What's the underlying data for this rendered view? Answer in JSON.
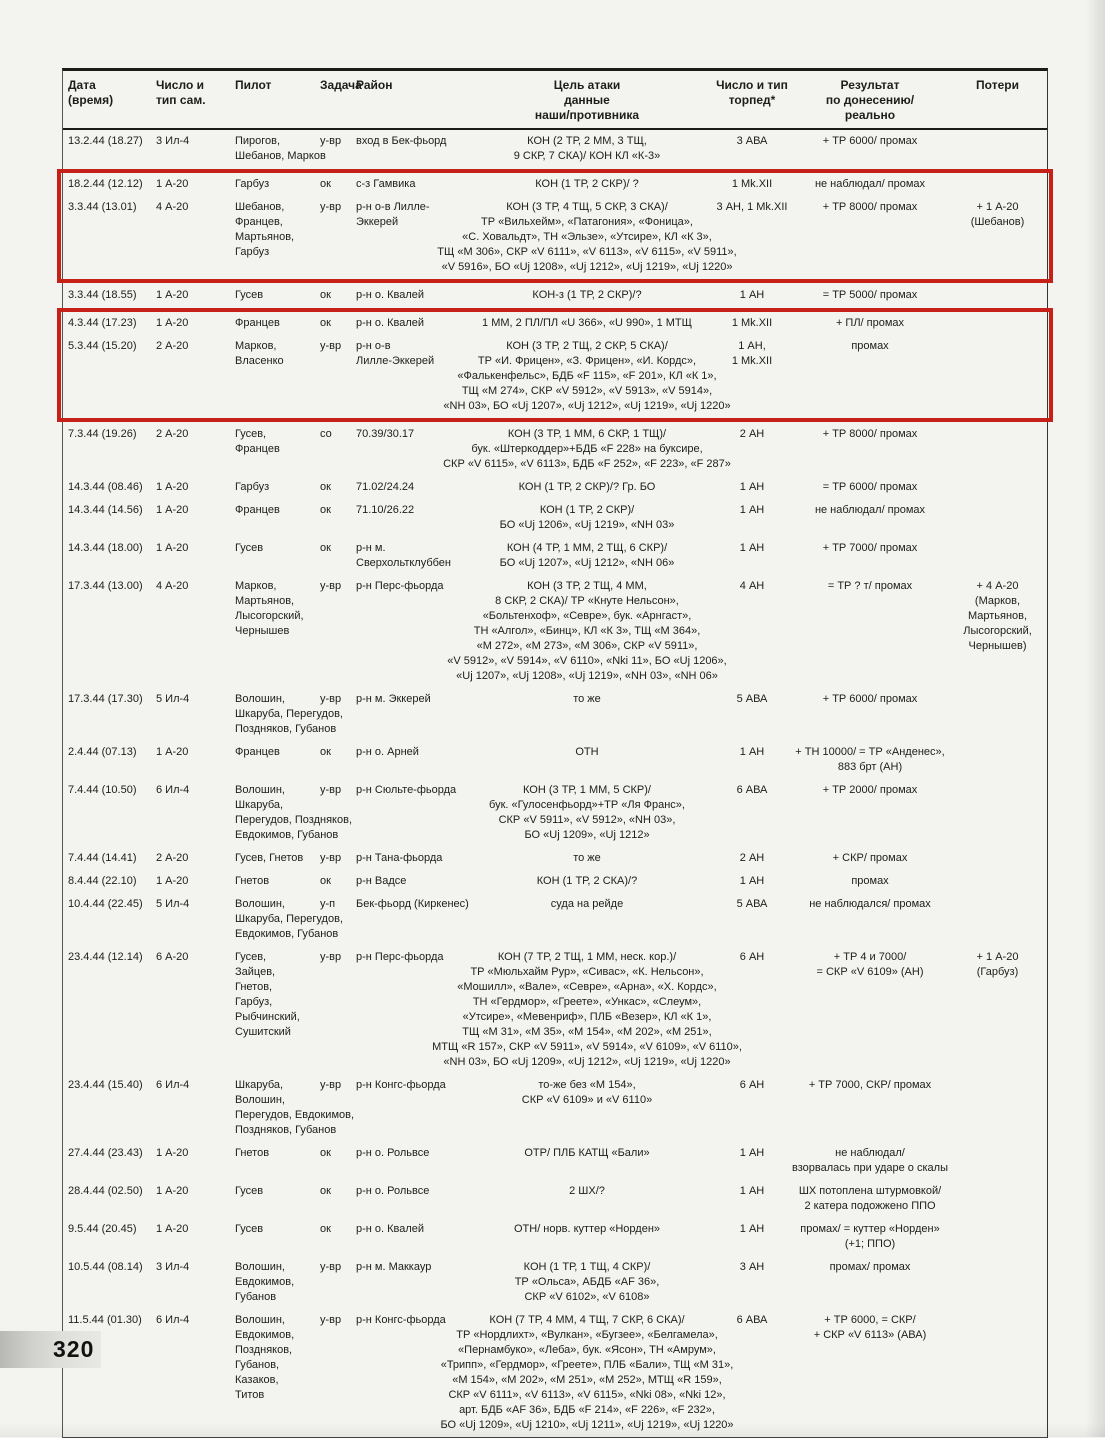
{
  "page": {
    "number": "320"
  },
  "colors": {
    "highlight_red": "#c62118",
    "ink": "#1d1d1b",
    "paper": "#f3f3f0"
  },
  "table": {
    "columns": [
      {
        "key": "date",
        "label": "Дата\n(время)",
        "align": "left"
      },
      {
        "key": "count",
        "label": "Число и\nтип сам.",
        "align": "left"
      },
      {
        "key": "pilots",
        "label": "Пилот",
        "align": "left"
      },
      {
        "key": "task",
        "label": "Задача",
        "align": "left"
      },
      {
        "key": "district",
        "label": "Район",
        "align": "left"
      },
      {
        "key": "target",
        "label": "Цель атаки\nданные\nнаши/противника",
        "align": "center"
      },
      {
        "key": "torpedoes",
        "label": "Число и тип\nторпед*",
        "align": "center"
      },
      {
        "key": "result",
        "label": "Результат\nпо донесению/\nреально",
        "align": "center"
      },
      {
        "key": "losses",
        "label": "Потери",
        "align": "center"
      }
    ],
    "rows": [
      {
        "date": "13.2.44 (18.27)",
        "count": "3 Ил-4",
        "pilots": "Пирогов,\nШебанов, Марков",
        "task": "у-вр",
        "district": "вход в Бек-фьорд",
        "target": "КОН (2 ТР, 2 ММ, 3 ТЩ,\n9 СКР, 7 СКА)/ КОН КЛ «К-3»",
        "torpedoes": "3 АВА",
        "result": "+ ТР 6000/ промах",
        "losses": ""
      },
      {
        "date": "18.2.44 (12.12)",
        "count": "1 А-20",
        "pilots": "Гарбуз",
        "task": "ок",
        "district": "с-з Гамвика",
        "target": "КОН (1 ТР, 2 СКР)/ ?",
        "torpedoes": "1 Mk.XII",
        "result": "не наблюдал/ промах",
        "losses": ""
      },
      {
        "date": "3.3.44 (13.01)",
        "count": "4 А-20",
        "pilots": "Шебанов,\nФранцев,\nМартьянов,\nГарбуз",
        "task": "у-вр",
        "district": "р-н о-в Лилле-\nЭккерей",
        "target": "КОН (3 ТР, 4 ТЩ, 5 СКР, 3 СКА)/\nТР «Вильхейм», «Патагония», «Фоница»,\n«С. Ховальдт», ТН «Эльзе», «Утсире», КЛ «К 3»,\nТЩ «М 306», СКР «V 6111», «V 6113», «V 6115», «V 5911»,\n«V 5916», БО «Uj 1208», «Uj 1212», «Uj 1219», «Uj 1220»",
        "torpedoes": "3 АН, 1 Mk.XII",
        "result": "+ ТР 8000/ промах",
        "losses": "+ 1 А-20\n(Шебанов)"
      },
      {
        "date": "3.3.44 (18.55)",
        "count": "1 А-20",
        "pilots": "Гусев",
        "task": "ок",
        "district": "р-н о. Квалей",
        "target": "КОН-з (1 ТР, 2 СКР)/?",
        "torpedoes": "1 АН",
        "result": "= ТР 5000/ промах",
        "losses": ""
      },
      {
        "date": "4.3.44 (17.23)",
        "count": "1 А-20",
        "pilots": "Францев",
        "task": "ок",
        "district": "р-н о. Квалей",
        "target": "1 ММ, 2 ПЛ/ПЛ «U 366», «U 990», 1 МТЩ",
        "torpedoes": "1 Mk.XII",
        "result": "+ ПЛ/ промах",
        "losses": ""
      },
      {
        "date": "5.3.44 (15.20)",
        "count": "2 А-20",
        "pilots": "Марков,\nВласенко",
        "task": "у-вр",
        "district": "р-н о-в\nЛилле-Эккерей",
        "target": "КОН (3 ТР, 2 ТЩ, 2 СКР, 5 СКА)/\nТР «И. Фрицен», «З. Фрицен», «И. Кордс»,\n«Фалькенфельс», БДБ «F 115», «F 201», КЛ «К 1»,\nТЩ «М 274», СКР «V 5912», «V 5913», «V 5914»,\n«NH 03», БО «Uj 1207», «Uj 1212», «Uj 1219», «Uj 1220»",
        "torpedoes": "1 АН,\n1 Mk.XII",
        "result": "промах",
        "losses": ""
      },
      {
        "date": "7.3.44 (19.26)",
        "count": "2 А-20",
        "pilots": "Гусев,\nФранцев",
        "task": "со",
        "district": "70.39/30.17",
        "target": "КОН (3 ТР, 1 ММ, 6 СКР, 1 ТЩ)/\nбук. «Штеркоддер»+БДБ «F 228» на буксире,\nСКР «V 6115», «V 6113», БДБ «F 252», «F 223», «F 287»",
        "torpedoes": "2 АН",
        "result": "+ ТР 8000/ промах",
        "losses": ""
      },
      {
        "date": "14.3.44 (08.46)",
        "count": "1 А-20",
        "pilots": "Гарбуз",
        "task": "ок",
        "district": "71.02/24.24",
        "target": "КОН (1 ТР, 2 СКР)/? Гр. БО",
        "torpedoes": "1 АН",
        "result": "= ТР 6000/ промах",
        "losses": ""
      },
      {
        "date": "14.3.44 (14.56)",
        "count": "1 А-20",
        "pilots": "Францев",
        "task": "ок",
        "district": "71.10/26.22",
        "target": "КОН (1 ТР, 2 СКР)/\nБО «Uj 1206», «Uj 1219», «NH 03»",
        "torpedoes": "1 АН",
        "result": "не наблюдал/ промах",
        "losses": ""
      },
      {
        "date": "14.3.44 (18.00)",
        "count": "1 А-20",
        "pilots": "Гусев",
        "task": "ок",
        "district": "р-н м.\nСверхольтклуббен",
        "target": "КОН (4 ТР, 1 ММ, 2 ТЩ, 6 СКР)/\nБО «Uj 1207», «Uj 1212», «NH 06»",
        "torpedoes": "1 АН",
        "result": "+ ТР 7000/ промах",
        "losses": ""
      },
      {
        "date": "17.3.44 (13.00)",
        "count": "4 А-20",
        "pilots": "Марков,\nМартьянов,\nЛысогорский,\nЧернышев",
        "task": "у-вр",
        "district": "р-н Перс-фьорда",
        "target": "КОН (3 ТР, 2 ТЩ, 4 ММ,\n8 СКР, 2 СКА)/ ТР «Кнуте Нельсон»,\n«Больтенхоф», «Севре», бук. «Арнгаст»,\nТН «Алгол», «Бинц», КЛ «К 3», ТЩ «М 364»,\n«М 272», «М 273», «М 306», СКР «V 5911»,\n«V 5912», «V 5914», «V 6110», «Nki 11», БО «Uj 1206»,\n«Uj 1207», «Uj 1208», «Uj 1219», «NH 03», «NH 06»",
        "torpedoes": "4 АН",
        "result": "= ТР ? т/ промах",
        "losses": "+ 4 А-20\n(Марков,\nМартьянов,\nЛысогорский,\nЧернышев)"
      },
      {
        "date": "17.3.44 (17.30)",
        "count": "5 Ил-4",
        "pilots": "Волошин,\nШкаруба, Перегудов,\nПоздняков, Губанов",
        "task": "у-вр",
        "district": "р-н м. Эккерей",
        "target": "то же",
        "torpedoes": "5 АВА",
        "result": "+ ТР 6000/ промах",
        "losses": ""
      },
      {
        "date": "2.4.44 (07.13)",
        "count": "1 А-20",
        "pilots": "Францев",
        "task": "ок",
        "district": "р-н о. Арней",
        "target": "ОТН",
        "torpedoes": "1 АН",
        "result": "+ ТН 10000/ = ТР «Анденес»,\n883 брт (АН)",
        "losses": ""
      },
      {
        "date": "7.4.44 (10.50)",
        "count": "6 Ил-4",
        "pilots": "Волошин,\nШкаруба,\nПерегудов, Поздняков,\nЕвдокимов, Губанов",
        "task": "у-вр",
        "district": "р-н Сюльте-фьорда",
        "target": "КОН (3 ТР, 1 ММ, 5 СКР)/\nбук. «Гулосенфьорд»+ТР «Ля Франс»,\nСКР «V 5911», «V 5912», «NH 03»,\nБО «Uj 1209», «Uj 1212»",
        "torpedoes": "6 АВА",
        "result": "+ ТР 2000/ промах",
        "losses": ""
      },
      {
        "date": "7.4.44 (14.41)",
        "count": "2 А-20",
        "pilots": "Гусев, Гнетов",
        "task": "у-вр",
        "district": "р-н Тана-фьорда",
        "target": "то же",
        "torpedoes": "2 АН",
        "result": "+ СКР/ промах",
        "losses": ""
      },
      {
        "date": "8.4.44 (22.10)",
        "count": "1 А-20",
        "pilots": "Гнетов",
        "task": "ок",
        "district": "р-н Вадсе",
        "target": "КОН (1 ТР, 2 СКА)/?",
        "torpedoes": "1 АН",
        "result": "промах",
        "losses": ""
      },
      {
        "date": "10.4.44 (22.45)",
        "count": "5 Ил-4",
        "pilots": "Волошин,\nШкаруба, Перегудов,\nЕвдокимов, Губанов",
        "task": "у-п",
        "district": "Бек-фьорд (Киркенес)",
        "target": "суда на рейде",
        "torpedoes": "5 АВА",
        "result": "не наблюдался/ промах",
        "losses": ""
      },
      {
        "date": "23.4.44 (12.14)",
        "count": "6 А-20",
        "pilots": "Гусев,\nЗайцев,\nГнетов,\nГарбуз,\nРыбчинский,\nСушитский",
        "task": "у-вр",
        "district": "р-н Перс-фьорда",
        "target": "КОН (7 ТР, 2 ТЩ, 1 ММ, неск. кор.)/\nТР «Мюльхайм Рур», «Сивас», «К. Нельсон»,\n«Мошилл», «Вале», «Севре», «Арна», «Х. Кордс»,\nТН «Гердмор», «Греете», «Ункас», «Слеум»,\n«Утсире», «Мевенриф», ПЛБ «Везер», КЛ «К 1»,\nТЩ «М 31», «М 35», «М 154», «М 202», «М 251»,\nМТЩ «R 157», СКР «V 5911», «V 5914», «V 6109», «V 6110»,\n«NH 03», БО «Uj 1209», «Uj 1212», «Uj 1219», «Uj 1220»",
        "torpedoes": "6 АН",
        "result": "+ ТР 4 и 7000/\n= СКР «V 6109» (АН)",
        "losses": "+ 1 А-20\n(Гарбуз)"
      },
      {
        "date": "23.4.44 (15.40)",
        "count": "6 Ил-4",
        "pilots": "Шкаруба,\nВолошин,\nПерегудов, Евдокимов,\nПоздняков, Губанов",
        "task": "у-вр",
        "district": "р-н Конгс-фьорда",
        "target": "то-же без «М 154»,\nСКР «V 6109» и «V 6110»",
        "torpedoes": "6 АН",
        "result": "+ ТР 7000, СКР/ промах",
        "losses": ""
      },
      {
        "date": "27.4.44 (23.43)",
        "count": "1 А-20",
        "pilots": "Гнетов",
        "task": "ок",
        "district": "р-н о. Рольвсе",
        "target": "ОТР/ ПЛБ КАТЩ «Бали»",
        "torpedoes": "1 АН",
        "result": "не наблюдал/\nвзорвалась при ударе о скалы",
        "losses": ""
      },
      {
        "date": "28.4.44 (02.50)",
        "count": "1 А-20",
        "pilots": "Гусев",
        "task": "ок",
        "district": "р-н о. Рольвсе",
        "target": "2 ШХ/?",
        "torpedoes": "1 АН",
        "result": "ШХ потоплена штурмовкой/\n2 катера подожжено ППО",
        "losses": ""
      },
      {
        "date": "9.5.44 (20.45)",
        "count": "1 А-20",
        "pilots": "Гусев",
        "task": "ок",
        "district": "р-н о. Квалей",
        "target": "ОТН/ норв. куттер «Норден»",
        "torpedoes": "1 АН",
        "result": "промах/ = куттер «Норден»\n(+1; ППО)",
        "losses": ""
      },
      {
        "date": "10.5.44 (08.14)",
        "count": "3 Ил-4",
        "pilots": "Волошин,\nЕвдокимов,\nГубанов",
        "task": "у-вр",
        "district": "р-н м. Маккаур",
        "target": "КОН (1 ТР, 1 ТЩ, 4 СКР)/\nТР «Ольса», АБДБ «AF 36»,\nСКР «V 6102», «V 6108»",
        "torpedoes": "3 АН",
        "result": "промах/ промах",
        "losses": ""
      },
      {
        "date": "11.5.44 (01.30)",
        "count": "6 Ил-4",
        "pilots": "Волошин,\nЕвдокимов,\nПоздняков,\nГубанов,\nКазаков,\nТитов",
        "task": "у-вр",
        "district": "р-н Конгс-фьорда",
        "target": "КОН (7 ТР, 4 ММ, 4 ТЩ, 7 СКР, 6 СКА)/\nТР «Нордлихт», «Вулкан», «Бугзее», «Белгамела»,\n«Пернамбуко», «Леба», бук. «Ясон», ТН «Амрум»,\n«Трипп», «Гердмор», «Греете», ПЛБ «Бали», ТЩ «М 31»,\n«М 154», «М 202», «М 251», «М 252», МТЩ «R 159»,\nСКР «V 6111», «V 6113», «V 6115», «Nki 08», «Nki 12»,\nарт. БДБ «AF 36», БДБ «F 214», «F 226», «F 232»,\nБО «Uj 1209», «Uj 1210», «Uj 1211», «Uj 1219», «Uj 1220»",
        "torpedoes": "6 АВА",
        "result": "+ ТР 6000, = СКР/\n+ СКР «V 6113» (АВА)",
        "losses": ""
      }
    ],
    "segments": [
      {
        "type": "plain",
        "rows": [
          0
        ]
      },
      {
        "type": "highlight",
        "rows": [
          1,
          2
        ]
      },
      {
        "type": "plain",
        "rows": [
          3
        ]
      },
      {
        "type": "highlight",
        "rows": [
          4,
          5
        ]
      },
      {
        "type": "plain",
        "rows": [
          6,
          7,
          8,
          9,
          10,
          11,
          12,
          13,
          14,
          15,
          16,
          17,
          18,
          19,
          20,
          21,
          22,
          23
        ]
      }
    ]
  }
}
